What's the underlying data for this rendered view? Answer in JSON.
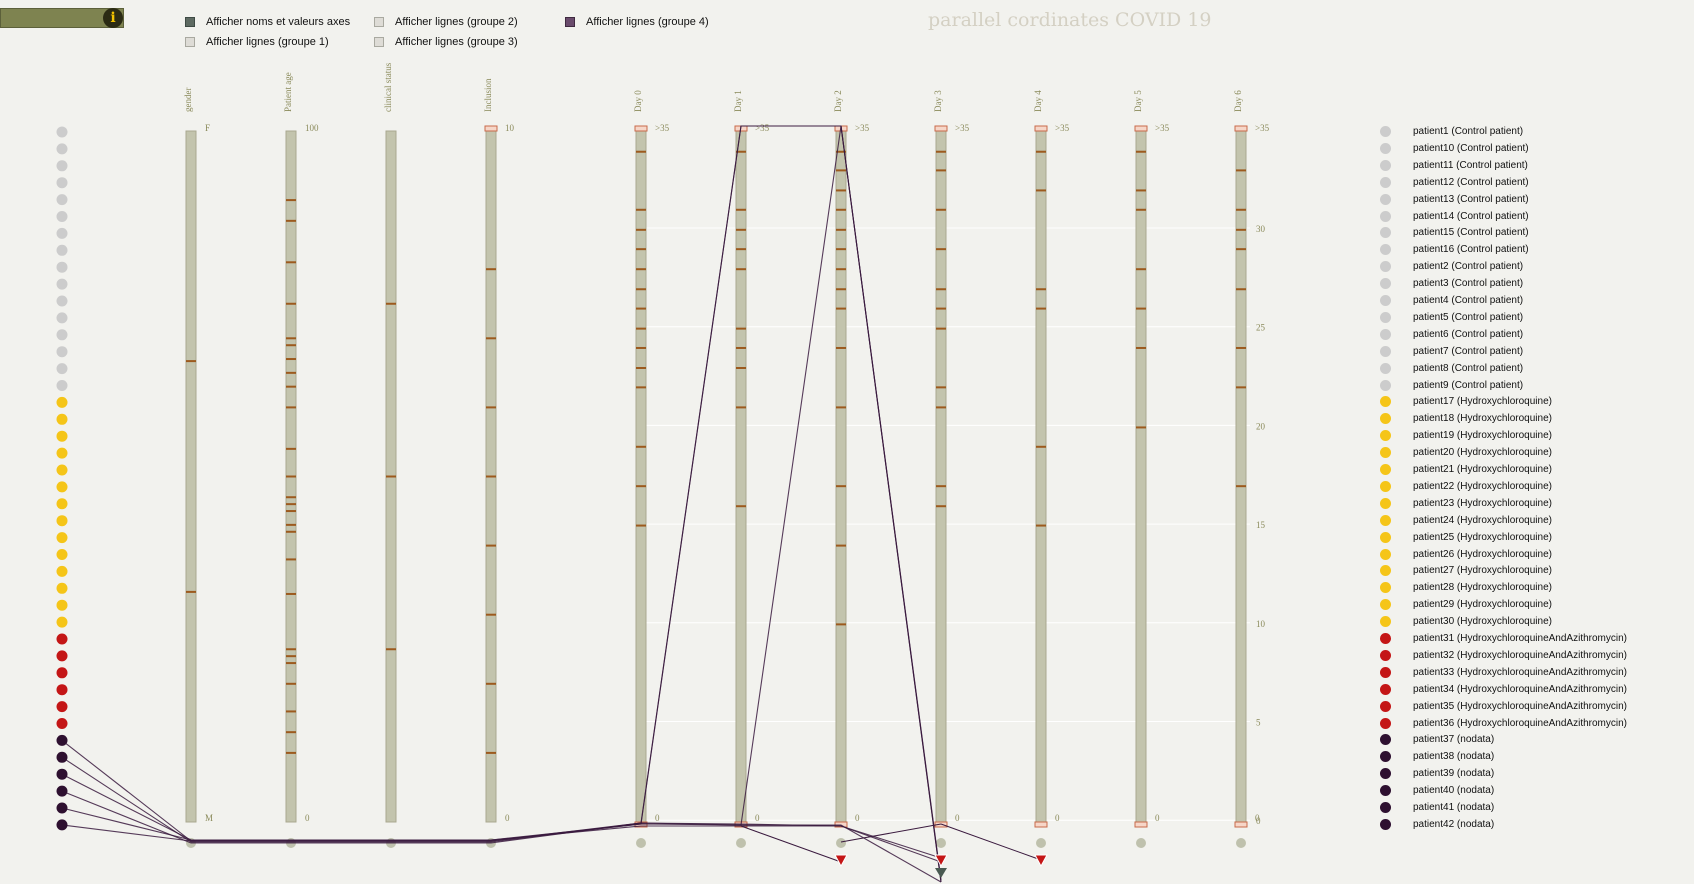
{
  "title": "parallel cordinates COVID 19",
  "info_button": "i",
  "controls": [
    {
      "label": "Afficher noms et valeurs axes",
      "checked": true,
      "style": "on-dark"
    },
    {
      "label": "Afficher lignes (groupe 1)",
      "checked": false,
      "style": "off"
    },
    {
      "label": "Afficher lignes (groupe 2)",
      "checked": false,
      "style": "off"
    },
    {
      "label": "Afficher lignes (groupe 3)",
      "checked": false,
      "style": "off"
    },
    {
      "label": "Afficher lignes (groupe 4)",
      "checked": true,
      "style": "on-purple"
    }
  ],
  "colors": {
    "control": "#cccccc",
    "hydroxychloroquine": "#f5c518",
    "hca": "#c41616",
    "nodata": "#2e1030",
    "axis_fill": "#c3c4ad",
    "tick": "#9c5a1e",
    "line": "#3a1a3e",
    "nodata_marker": "#bfc1ad",
    "arrow": "#c41616"
  },
  "axes": [
    {
      "name": "gender",
      "top": "F",
      "bottom": "M"
    },
    {
      "name": "Patient age",
      "top": "100",
      "bottom": "0"
    },
    {
      "name": "clinical status",
      "top": "",
      "bottom": ""
    },
    {
      "name": "Inclusion",
      "top": "10",
      "bottom": "0"
    },
    {
      "name": "Day 0",
      "top": ">35",
      "bottom": "0"
    },
    {
      "name": "Day 1",
      "top": ">35",
      "bottom": "0"
    },
    {
      "name": "Day 2",
      "top": ">35",
      "bottom": "0"
    },
    {
      "name": "Day 3",
      "top": ">35",
      "bottom": "0"
    },
    {
      "name": "Day 4",
      "top": ">35",
      "bottom": "0"
    },
    {
      "name": "Day 5",
      "top": ">35",
      "bottom": "0"
    },
    {
      "name": "Day 6",
      "top": ">35",
      "bottom": "0"
    }
  ],
  "scale_labels": [
    "30",
    "25",
    "20",
    "15",
    "10",
    "5",
    "0"
  ],
  "patients": [
    {
      "label": "patient1 (Control patient)",
      "group": "control"
    },
    {
      "label": "patient10 (Control patient)",
      "group": "control"
    },
    {
      "label": "patient11 (Control patient)",
      "group": "control"
    },
    {
      "label": "patient12 (Control patient)",
      "group": "control"
    },
    {
      "label": "patient13 (Control patient)",
      "group": "control"
    },
    {
      "label": "patient14 (Control patient)",
      "group": "control"
    },
    {
      "label": "patient15 (Control patient)",
      "group": "control"
    },
    {
      "label": "patient16 (Control patient)",
      "group": "control"
    },
    {
      "label": "patient2 (Control patient)",
      "group": "control"
    },
    {
      "label": "patient3 (Control patient)",
      "group": "control"
    },
    {
      "label": "patient4 (Control patient)",
      "group": "control"
    },
    {
      "label": "patient5 (Control patient)",
      "group": "control"
    },
    {
      "label": "patient6 (Control patient)",
      "group": "control"
    },
    {
      "label": "patient7 (Control patient)",
      "group": "control"
    },
    {
      "label": "patient8 (Control patient)",
      "group": "control"
    },
    {
      "label": "patient9 (Control patient)",
      "group": "control"
    },
    {
      "label": "patient17 (Hydroxychloroquine)",
      "group": "hydroxychloroquine"
    },
    {
      "label": "patient18 (Hydroxychloroquine)",
      "group": "hydroxychloroquine"
    },
    {
      "label": "patient19 (Hydroxychloroquine)",
      "group": "hydroxychloroquine"
    },
    {
      "label": "patient20 (Hydroxychloroquine)",
      "group": "hydroxychloroquine"
    },
    {
      "label": "patient21 (Hydroxychloroquine)",
      "group": "hydroxychloroquine"
    },
    {
      "label": "patient22 (Hydroxychloroquine)",
      "group": "hydroxychloroquine"
    },
    {
      "label": "patient23 (Hydroxychloroquine)",
      "group": "hydroxychloroquine"
    },
    {
      "label": "patient24 (Hydroxychloroquine)",
      "group": "hydroxychloroquine"
    },
    {
      "label": "patient25 (Hydroxychloroquine)",
      "group": "hydroxychloroquine"
    },
    {
      "label": "patient26 (Hydroxychloroquine)",
      "group": "hydroxychloroquine"
    },
    {
      "label": "patient27 (Hydroxychloroquine)",
      "group": "hydroxychloroquine"
    },
    {
      "label": "patient28 (Hydroxychloroquine)",
      "group": "hydroxychloroquine"
    },
    {
      "label": "patient29 (Hydroxychloroquine)",
      "group": "hydroxychloroquine"
    },
    {
      "label": "patient30 (Hydroxychloroquine)",
      "group": "hydroxychloroquine"
    },
    {
      "label": "patient31 (HydroxychloroquineAndAzithromycin)",
      "group": "hca"
    },
    {
      "label": "patient32 (HydroxychloroquineAndAzithromycin)",
      "group": "hca"
    },
    {
      "label": "patient33 (HydroxychloroquineAndAzithromycin)",
      "group": "hca"
    },
    {
      "label": "patient34 (HydroxychloroquineAndAzithromycin)",
      "group": "hca"
    },
    {
      "label": "patient35 (HydroxychloroquineAndAzithromycin)",
      "group": "hca"
    },
    {
      "label": "patient36 (HydroxychloroquineAndAzithromycin)",
      "group": "hca"
    },
    {
      "label": "patient37 (nodata)",
      "group": "nodata"
    },
    {
      "label": "patient38 (nodata)",
      "group": "nodata"
    },
    {
      "label": "patient39 (nodata)",
      "group": "nodata"
    },
    {
      "label": "patient40 (nodata)",
      "group": "nodata"
    },
    {
      "label": "patient41 (nodata)",
      "group": "nodata"
    },
    {
      "label": "patient42 (nodata)",
      "group": "nodata"
    }
  ],
  "axis_ticks": [
    [
      0.333,
      0.667
    ],
    [
      0.1,
      0.13,
      0.19,
      0.25,
      0.3,
      0.31,
      0.33,
      0.35,
      0.37,
      0.4,
      0.46,
      0.5,
      0.53,
      0.54,
      0.55,
      0.57,
      0.58,
      0.62,
      0.67,
      0.75,
      0.76,
      0.77,
      0.8,
      0.84,
      0.87,
      0.9
    ],
    [
      0.25,
      0.5,
      0.75
    ],
    [
      0.2,
      0.3,
      0.4,
      0.5,
      0.6,
      0.7,
      0.8,
      0.9
    ],
    [
      0.03,
      0.114,
      0.143,
      0.171,
      0.2,
      0.229,
      0.257,
      0.286,
      0.314,
      0.343,
      0.371,
      0.457,
      0.514,
      0.571
    ],
    [
      0.03,
      0.114,
      0.143,
      0.171,
      0.2,
      0.286,
      0.314,
      0.343,
      0.4,
      0.543
    ],
    [
      0.03,
      0.057,
      0.086,
      0.114,
      0.143,
      0.171,
      0.2,
      0.229,
      0.257,
      0.314,
      0.4,
      0.514,
      0.6,
      0.714
    ],
    [
      0.03,
      0.057,
      0.114,
      0.171,
      0.229,
      0.257,
      0.286,
      0.371,
      0.4,
      0.514,
      0.543
    ],
    [
      0.03,
      0.086,
      0.229,
      0.257,
      0.457,
      0.571
    ],
    [
      0.03,
      0.086,
      0.114,
      0.2,
      0.257,
      0.314,
      0.429
    ],
    [
      0.057,
      0.114,
      0.143,
      0.171,
      0.229,
      0.314,
      0.371,
      0.514
    ]
  ],
  "scale_grid": true
}
